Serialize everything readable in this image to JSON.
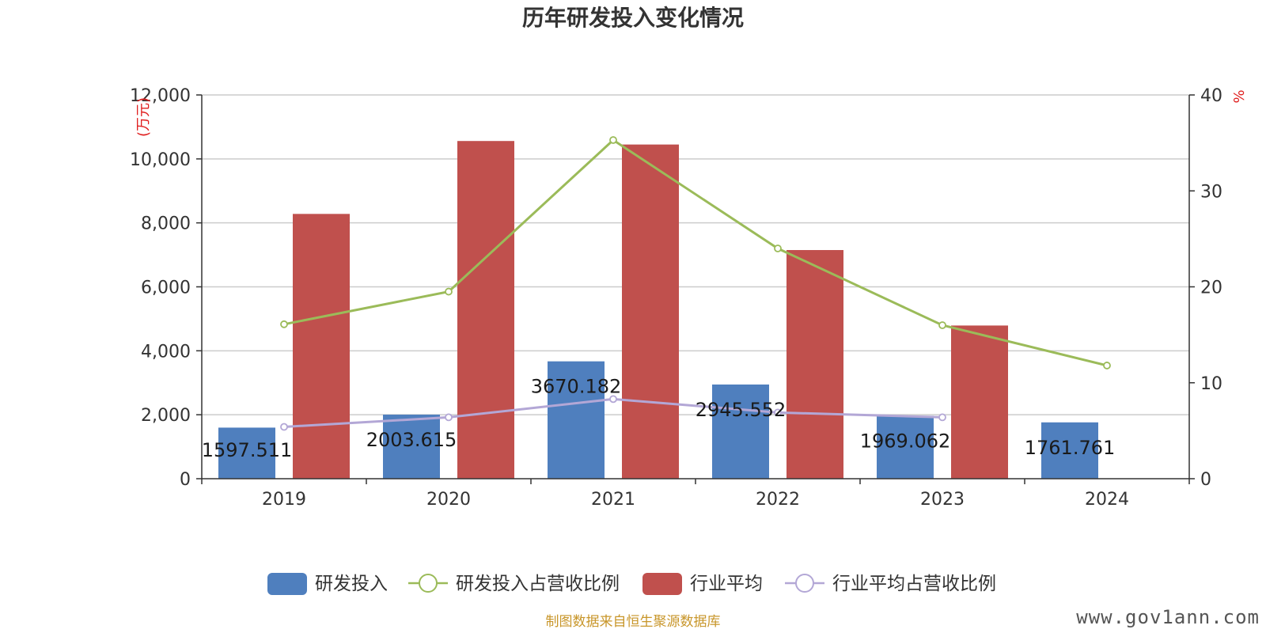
{
  "chart_data": {
    "type": "bar",
    "title": "历年研发投入变化情况",
    "categories": [
      "2019",
      "2020",
      "2021",
      "2022",
      "2023",
      "2024"
    ],
    "y_left": {
      "unit": "(万元)",
      "ylim": [
        0,
        12000
      ],
      "ticks": [
        "0",
        "2,000",
        "4,000",
        "6,000",
        "8,000",
        "10,000",
        "12,000"
      ]
    },
    "y_right": {
      "unit": "%",
      "ylim": [
        0,
        40
      ],
      "ticks": [
        "0",
        "10",
        "20",
        "30",
        "40"
      ]
    },
    "series": [
      {
        "name": "研发投入",
        "type": "bar",
        "axis": "left",
        "color": "#4f7fbe",
        "values": [
          1597.511,
          2003.615,
          3670.182,
          2945.552,
          1969.062,
          1761.761
        ],
        "labels": [
          "1597.511",
          "2003.615",
          "3670.182",
          "2945.552",
          "1969.062",
          "1761.761"
        ]
      },
      {
        "name": "研发投入占营收比例",
        "type": "line",
        "axis": "right",
        "color": "#9bbb59",
        "values": [
          16.1,
          19.5,
          35.3,
          24.0,
          16.0,
          11.8
        ]
      },
      {
        "name": "行业平均",
        "type": "bar",
        "axis": "left",
        "color": "#c0504d",
        "values": [
          8280,
          10560,
          10450,
          7150,
          4790,
          null
        ]
      },
      {
        "name": "行业平均占营收比例",
        "type": "line",
        "axis": "right",
        "color": "#b3a7d6",
        "values": [
          5.4,
          6.4,
          8.3,
          6.9,
          6.4,
          null
        ]
      }
    ],
    "grid": true,
    "legend_position": "bottom"
  },
  "footer": {
    "source": "制图数据来自恒生聚源数据库",
    "watermark": "www.gov1ann.com"
  }
}
